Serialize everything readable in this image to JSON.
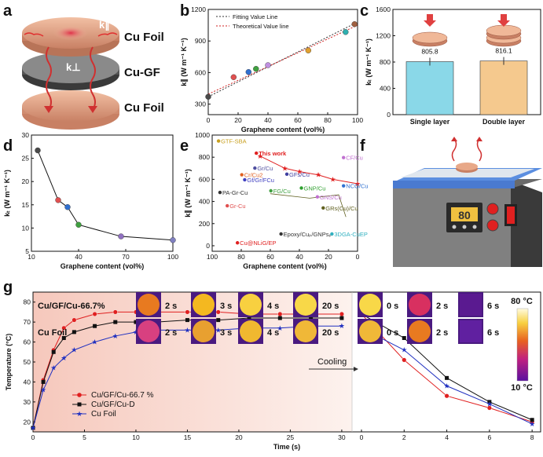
{
  "panel_labels": {
    "a": "a",
    "b": "b",
    "c": "c",
    "d": "d",
    "e": "e",
    "f": "f",
    "g": "g"
  },
  "colors": {
    "copper": "#e3a07e",
    "grey": "#5a5a5a",
    "red": "#e02020",
    "black": "#111111",
    "blue": "#2030c0",
    "hot": "#e04060",
    "purple": "#7b2aa6",
    "stage": "#5b8ee0",
    "teal": "#8ad8e8",
    "tan": "#f5c98e"
  },
  "panel_a": {
    "top": "Cu Foil",
    "mid": "Cu-GF",
    "bottom": "Cu Foil",
    "k_parallel": "k∥",
    "k_perp": "k⊥"
  },
  "chart_data": [
    {
      "id": "b",
      "type": "scatter",
      "xlabel": "Graphene content (vol%)",
      "ylabel": "k∥ (W m⁻¹ K⁻¹)",
      "xlim": [
        0,
        100
      ],
      "ylim": [
        200,
        1200
      ],
      "xticks": [
        0,
        20,
        40,
        60,
        80,
        100
      ],
      "yticks": [
        300,
        600,
        900,
        1200
      ],
      "legend": [
        "Fitting Value Line",
        "Theoretical Value line"
      ],
      "fit_line": [
        [
          0,
          370
        ],
        [
          100,
          1080
        ]
      ],
      "theory_line": [
        [
          0,
          395
        ],
        [
          100,
          1050
        ]
      ],
      "points": [
        {
          "x": 0,
          "y": 370,
          "c": "#4a4a4a"
        },
        {
          "x": 17,
          "y": 556,
          "c": "#e05050"
        },
        {
          "x": 27,
          "y": 605,
          "c": "#3070d0"
        },
        {
          "x": 32,
          "y": 635,
          "c": "#40a040"
        },
        {
          "x": 40,
          "y": 670,
          "c": "#c090e0"
        },
        {
          "x": 67,
          "y": 810,
          "c": "#e0a030"
        },
        {
          "x": 92,
          "y": 985,
          "c": "#30b0b0"
        },
        {
          "x": 98,
          "y": 1060,
          "c": "#a06040"
        }
      ]
    },
    {
      "id": "c",
      "type": "bar",
      "ylabel": "kₜ (W m⁻¹ K⁻¹)",
      "ylim": [
        0,
        1600
      ],
      "yticks": [
        0,
        400,
        800,
        1200,
        1600
      ],
      "categories": [
        "Single layer",
        "Double layer"
      ],
      "values": [
        805.8,
        816.1
      ],
      "labels": [
        "805.8",
        "816.1"
      ]
    },
    {
      "id": "d",
      "type": "line",
      "xlabel": "Graphene content (vol%)",
      "ylabel": "kₜ (W m⁻¹ K⁻¹)",
      "xlim": [
        10,
        100
      ],
      "ylim": [
        5,
        30
      ],
      "xticks": [
        10,
        40,
        70,
        100
      ],
      "yticks": [
        5,
        10,
        15,
        20,
        25,
        30
      ],
      "x": [
        14,
        27,
        33,
        40,
        67,
        100
      ],
      "y": [
        26.7,
        16.0,
        14.5,
        10.7,
        8.2,
        7.4
      ],
      "colors": [
        "#4a4a4a",
        "#e05050",
        "#3070d0",
        "#40a040",
        "#9070c0",
        "#8080c0"
      ]
    },
    {
      "id": "e",
      "type": "scatter",
      "xlabel": "Graphene content (vol%)",
      "ylabel": "k∥ (W m⁻¹ K⁻¹)",
      "xlim": [
        100,
        0
      ],
      "ylim": [
        -50,
        1000
      ],
      "xticks": [
        100,
        80,
        60,
        40,
        20,
        0
      ],
      "yticks": [
        0,
        200,
        400,
        600,
        800,
        1000
      ],
      "labels": [
        {
          "t": "GTF-SBA",
          "x": 94,
          "y": 925,
          "c": "#c8a020"
        },
        {
          "t": "This work",
          "x": 68,
          "y": 815,
          "c": "#e02020",
          "b": true
        },
        {
          "t": "CF/Cu",
          "x": 8,
          "y": 775,
          "c": "#c070d0"
        },
        {
          "t": "Gr/Cu",
          "x": 69,
          "y": 680,
          "c": "#5050a0"
        },
        {
          "t": "Cr/Cu2",
          "x": 78,
          "y": 620,
          "c": "#e06020"
        },
        {
          "t": "GFs/Cu",
          "x": 47,
          "y": 625,
          "c": "#4040a0"
        },
        {
          "t": "Gf/Gr/FCu",
          "x": 76,
          "y": 575,
          "c": "#4040c0"
        },
        {
          "t": "FG/Cu",
          "x": 58,
          "y": 475,
          "c": "#40a040"
        },
        {
          "t": "GNP/Cu",
          "x": 37,
          "y": 500,
          "c": "#30a030"
        },
        {
          "t": "NCG/Cu",
          "x": 8,
          "y": 520,
          "c": "#3070d0"
        },
        {
          "t": "PA-Gr-Cu",
          "x": 93,
          "y": 460,
          "c": "#333333"
        },
        {
          "t": "GNS/Cu",
          "x": 26,
          "y": 420,
          "c": "#c070d0"
        },
        {
          "t": "Gr-Cu",
          "x": 88,
          "y": 340,
          "c": "#e05050"
        },
        {
          "t": "GRs(Cu)/Cu",
          "x": 22,
          "y": 320,
          "c": "#606020"
        },
        {
          "t": "Epoxy/Cuₚ/GNPsₚ",
          "x": 51,
          "y": 85,
          "c": "#333333"
        },
        {
          "t": "3DGA-CuEP",
          "x": 16,
          "y": 85,
          "c": "#30b0c0"
        },
        {
          "t": "Cu@NLiG/EP",
          "x": 81,
          "y": 5,
          "c": "#e02020"
        }
      ],
      "this_work": [
        [
          67,
          810
        ],
        [
          50,
          700
        ],
        [
          40,
          670
        ],
        [
          27,
          640
        ],
        [
          17,
          600
        ],
        [
          0,
          560
        ]
      ],
      "green_tri": [
        [
          60,
          470
        ],
        [
          33,
          430
        ],
        [
          13,
          460
        ],
        [
          8,
          260
        ]
      ]
    },
    {
      "id": "g",
      "type": "line",
      "xlabel": "Time (s)",
      "ylabel": "Temperature (°C)",
      "ylim": [
        15,
        85
      ],
      "yticks": [
        20,
        30,
        40,
        50,
        60,
        70,
        80
      ],
      "heating_xticks": [
        0,
        5,
        10,
        15,
        20,
        25,
        30
      ],
      "cooling_xticks": [
        0,
        2,
        4,
        6,
        8
      ],
      "series": [
        {
          "name": "Cu/GF/Cu-66.7 %",
          "color": "#e02020",
          "heat_x": [
            0,
            1,
            2,
            3,
            4,
            6,
            8,
            10,
            12,
            15,
            18,
            21,
            24,
            27,
            30
          ],
          "heat_y": [
            17,
            41,
            56,
            67,
            71,
            74,
            75,
            75,
            75,
            75,
            75,
            74,
            74,
            74,
            74
          ],
          "cool_x": [
            0,
            2,
            4,
            6,
            8
          ],
          "cool_y": [
            74,
            51,
            33,
            27,
            20
          ]
        },
        {
          "name": "Cu/GF/Cu-D",
          "color": "#111111",
          "heat_x": [
            0,
            1,
            2,
            3,
            4,
            6,
            8,
            10,
            12,
            15,
            18,
            21,
            24,
            27,
            30
          ],
          "heat_y": [
            17,
            40,
            55,
            62,
            65,
            68,
            70,
            70,
            70,
            71,
            71,
            72,
            72,
            72,
            72
          ],
          "cool_x": [
            0,
            2,
            4,
            6,
            8
          ],
          "cool_y": [
            74,
            62,
            42,
            30,
            21
          ]
        },
        {
          "name": "Cu Foil",
          "color": "#2030c0",
          "heat_x": [
            0,
            1,
            2,
            3,
            4,
            6,
            8,
            10,
            12,
            15,
            18,
            21,
            24,
            27,
            30
          ],
          "heat_y": [
            17,
            36,
            47,
            52,
            56,
            60,
            63,
            65,
            66,
            66,
            66,
            67,
            67,
            68,
            68
          ],
          "cool_x": [
            0,
            2,
            4,
            6,
            8
          ],
          "cool_y": [
            67,
            56,
            38,
            29,
            19
          ]
        }
      ],
      "row1_label": "Cu/GF/Cu-66.7%",
      "row2_label": "Cu Foil",
      "thumb_times_heat": [
        "2 s",
        "3 s",
        "4 s",
        "20 s"
      ],
      "thumb_times_cool": [
        "0 s",
        "2 s",
        "6 s"
      ],
      "row1_colors": [
        "#e87a20",
        "#f4b820",
        "#f8d040",
        "#f8d848",
        "#f8d848",
        "#d83060",
        "#5a1a90"
      ],
      "row2_colors": [
        "#d84080",
        "#e8a030",
        "#f0b830",
        "#f0b838",
        "#f0b838",
        "#e87a20",
        "#6020a0"
      ],
      "cooling_label": "Cooling",
      "colorbar_top": "80 °C",
      "colorbar_bottom": "10 °C"
    }
  ],
  "panel_f": {
    "display": "80"
  }
}
